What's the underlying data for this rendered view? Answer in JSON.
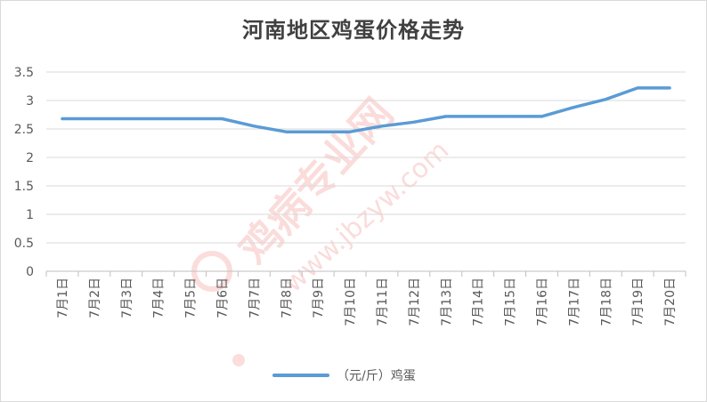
{
  "chart_data": {
    "type": "line",
    "title": "河南地区鸡蛋价格走势",
    "categories": [
      "7月1日",
      "7月2日",
      "7月3日",
      "7月4日",
      "7月5日",
      "7月6日",
      "7月7日",
      "7月8日",
      "7月9日",
      "7月10日",
      "7月11日",
      "7月12日",
      "7月13日",
      "7月14日",
      "7月15日",
      "7月16日",
      "7月17日",
      "7月18日",
      "7月19日",
      "7月20日"
    ],
    "series": [
      {
        "name": "（元/斤）鸡蛋",
        "values": [
          2.68,
          2.68,
          2.68,
          2.68,
          2.68,
          2.68,
          2.55,
          2.45,
          2.45,
          2.45,
          2.55,
          2.62,
          2.72,
          2.72,
          2.72,
          2.72,
          2.88,
          3.02,
          3.22,
          3.22
        ],
        "color": "#5b9bd5"
      }
    ],
    "ylim": [
      0,
      3.5
    ],
    "yticks": [
      0,
      0.5,
      1,
      1.5,
      2,
      2.5,
      3,
      3.5
    ],
    "ytick_labels": [
      "0",
      "0.5",
      "1",
      "1.5",
      "2",
      "2.5",
      "3",
      "3.5"
    ],
    "grid": true,
    "legend": "bottom",
    "gridline_color": "#d9d9d9"
  },
  "watermark": {
    "text": "鸡病专业网",
    "url": "www.jbzyw.com",
    "color": "#e8453c"
  }
}
